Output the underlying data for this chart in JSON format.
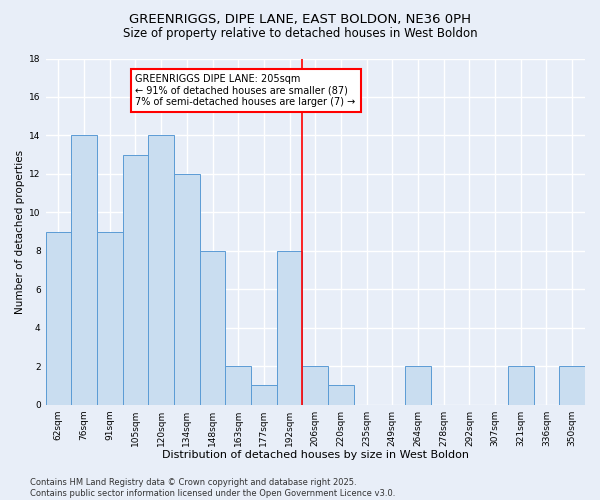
{
  "title": "GREENRIGGS, DIPE LANE, EAST BOLDON, NE36 0PH",
  "subtitle": "Size of property relative to detached houses in West Boldon",
  "xlabel": "Distribution of detached houses by size in West Boldon",
  "ylabel": "Number of detached properties",
  "categories": [
    "62sqm",
    "76sqm",
    "91sqm",
    "105sqm",
    "120sqm",
    "134sqm",
    "148sqm",
    "163sqm",
    "177sqm",
    "192sqm",
    "206sqm",
    "220sqm",
    "235sqm",
    "249sqm",
    "264sqm",
    "278sqm",
    "292sqm",
    "307sqm",
    "321sqm",
    "336sqm",
    "350sqm"
  ],
  "values": [
    9,
    14,
    9,
    13,
    14,
    12,
    8,
    2,
    1,
    8,
    2,
    1,
    0,
    0,
    2,
    0,
    0,
    0,
    2,
    0,
    2
  ],
  "bar_color": "#c9ddf0",
  "bar_edge_color": "#5b9bd5",
  "vline_color": "red",
  "annotation_text": "GREENRIGGS DIPE LANE: 205sqm\n← 91% of detached houses are smaller (87)\n7% of semi-detached houses are larger (7) →",
  "annotation_box_color": "white",
  "annotation_box_edge_color": "red",
  "ylim": [
    0,
    18
  ],
  "yticks": [
    0,
    2,
    4,
    6,
    8,
    10,
    12,
    14,
    16,
    18
  ],
  "bg_color": "#e8eef8",
  "plot_bg_color": "#e8eef8",
  "grid_color": "white",
  "footer": "Contains HM Land Registry data © Crown copyright and database right 2025.\nContains public sector information licensed under the Open Government Licence v3.0.",
  "title_fontsize": 9.5,
  "subtitle_fontsize": 8.5,
  "xlabel_fontsize": 8,
  "ylabel_fontsize": 7.5,
  "tick_fontsize": 6.5,
  "annotation_fontsize": 7,
  "footer_fontsize": 6
}
